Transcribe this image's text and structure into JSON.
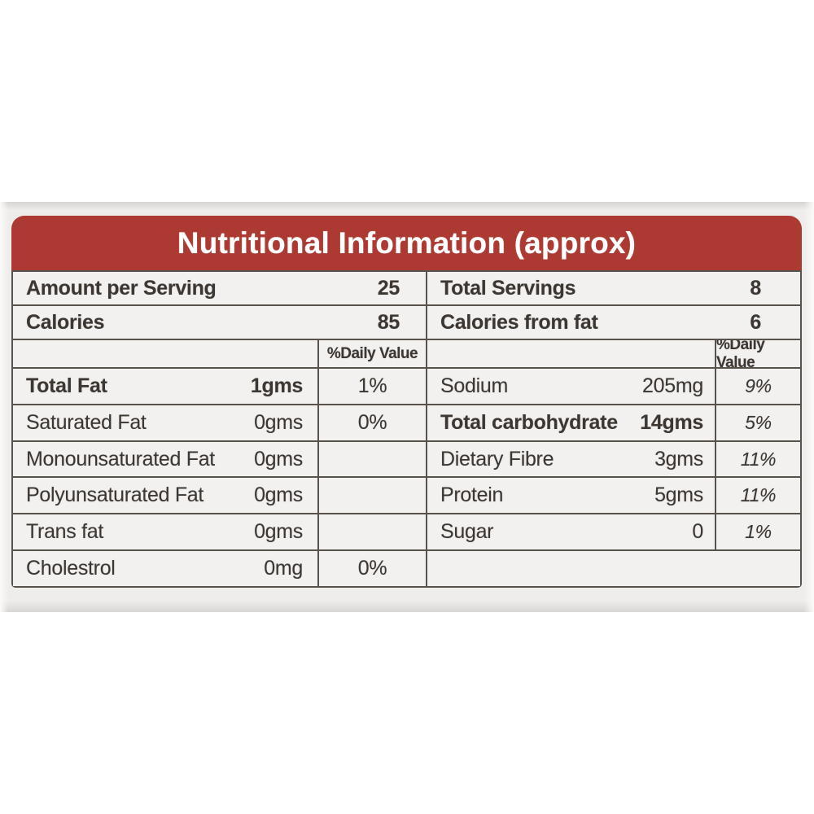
{
  "label": {
    "title": "Nutritional Information (approx)",
    "dv_header": "%Daily Value",
    "summary": {
      "left": [
        {
          "name": "Amount per Serving",
          "value": "25"
        },
        {
          "name": "Calories",
          "value": "85"
        }
      ],
      "right": [
        {
          "name": "Total Servings",
          "value": "8"
        },
        {
          "name": "Calories from fat",
          "value": "6"
        }
      ]
    },
    "nutrients": {
      "left": [
        {
          "name": "Total Fat",
          "amount": "1gms",
          "dv": "1%"
        },
        {
          "name": "Saturated Fat",
          "amount": "0gms",
          "dv": "0%"
        },
        {
          "name": "Monounsaturated Fat",
          "amount": "0gms",
          "dv": ""
        },
        {
          "name": "Polyunsaturated Fat",
          "amount": "0gms",
          "dv": ""
        },
        {
          "name": "Trans fat",
          "amount": "0gms",
          "dv": ""
        },
        {
          "name": "Cholestrol",
          "amount": "0mg",
          "dv": "0%"
        }
      ],
      "right": [
        {
          "name": "Sodium",
          "amount": "205mg",
          "dv": "9%"
        },
        {
          "name": "Total carbohydrate",
          "amount": "14gms",
          "dv": "5%"
        },
        {
          "name": "Dietary Fibre",
          "amount": "3gms",
          "dv": "11%"
        },
        {
          "name": "Protein",
          "amount": "5gms",
          "dv": "11%"
        },
        {
          "name": "Sugar",
          "amount": "0",
          "dv": "1%"
        }
      ]
    },
    "colors": {
      "header_bg": "#ac3a33",
      "header_text": "#ffffff",
      "border": "#57524c",
      "cell_bg": "#f3f1ef",
      "text": "#3c3733"
    }
  }
}
